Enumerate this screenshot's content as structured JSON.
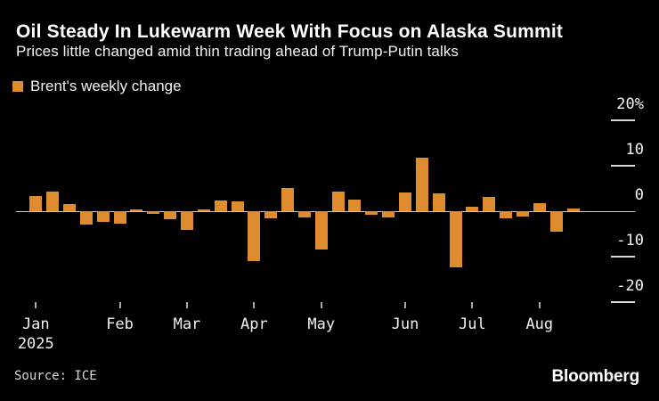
{
  "header": {
    "title": "Oil Steady In Lukewarm Week With Focus on Alaska Summit",
    "subtitle": "Prices little changed amid thin trading ahead of Trump-Putin talks"
  },
  "legend": {
    "label": "Brent's weekly change",
    "swatch_color": "#DE8C2D"
  },
  "footer": {
    "source": "Source: ICE",
    "brand": "Bloomberg"
  },
  "colors": {
    "background": "#000000",
    "bar": "#DE8C2D",
    "axis_line": "#C9C9C9",
    "text": "#FFFFFF"
  },
  "chart_data": {
    "type": "bar",
    "title": "Brent's weekly change",
    "unit": "%",
    "x_description": "weekly bars, Jan 2025 through mid-Aug 2025",
    "x": [
      1,
      2,
      3,
      4,
      5,
      6,
      7,
      8,
      9,
      10,
      11,
      12,
      13,
      14,
      15,
      16,
      17,
      18,
      19,
      20,
      21,
      22,
      23,
      24,
      25,
      26,
      27,
      28,
      29,
      30,
      31,
      32,
      33
    ],
    "values": [
      3.3,
      4.4,
      1.5,
      -2.9,
      -2.3,
      -2.7,
      0.3,
      -0.6,
      -1.7,
      -4.1,
      0.4,
      2.3,
      2.2,
      -11.0,
      -1.5,
      5.1,
      -1.3,
      -8.4,
      4.4,
      2.5,
      -0.8,
      -1.3,
      4.1,
      11.8,
      3.9,
      -12.3,
      0.9,
      3.2,
      -1.5,
      -1.1,
      1.8,
      -4.6,
      0.5
    ],
    "ylim": [
      -24,
      22
    ],
    "grid": false,
    "legend_position": "top-left",
    "yticks": [
      {
        "label": "20%",
        "value": 20
      },
      {
        "label": "10",
        "value": 10
      },
      {
        "label": "0",
        "value": 0
      },
      {
        "label": "-10",
        "value": -10
      },
      {
        "label": "-20",
        "value": -20
      }
    ],
    "xticks": [
      {
        "label": "Jan",
        "sublabel": "2025",
        "index": 0
      },
      {
        "label": "Feb",
        "index": 5
      },
      {
        "label": "Mar",
        "index": 9
      },
      {
        "label": "Apr",
        "index": 13
      },
      {
        "label": "May",
        "index": 17
      },
      {
        "label": "Jun",
        "index": 22
      },
      {
        "label": "Jul",
        "index": 26
      },
      {
        "label": "Aug",
        "index": 30
      }
    ]
  }
}
